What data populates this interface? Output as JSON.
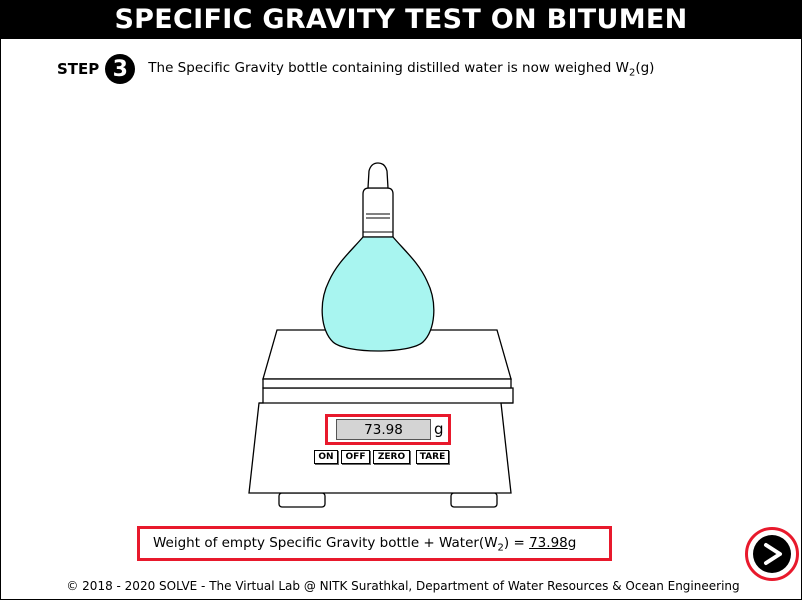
{
  "header": {
    "title": "SPECIFIC GRAVITY TEST ON BITUMEN"
  },
  "step": {
    "label": "STEP",
    "number": "3",
    "text_prefix": "The Specific Gravity bottle containing distilled water is now weighed W",
    "text_sub": "2",
    "text_suffix": "(g)"
  },
  "scale": {
    "reading": "73.98",
    "unit": "g",
    "buttons": {
      "on": "ON",
      "off": "OFF",
      "zero": "ZERO",
      "tare": "TARE"
    }
  },
  "result": {
    "label_prefix": "Weight of empty Specific Gravity bottle + Water(W",
    "label_sub": "2",
    "label_suffix": ") = ",
    "value": "73.98",
    "unit": "g"
  },
  "footer": {
    "text": "© 2018 - 2020 SOLVE - The Virtual Lab @ NITK Surathkal, Department of Water Resources & Ocean Engineering"
  },
  "colors": {
    "highlight": "#e8192c",
    "water": "#a8f5f0",
    "display_bg": "#d4d4d4"
  },
  "icons": {
    "next": "next-arrow-icon"
  }
}
